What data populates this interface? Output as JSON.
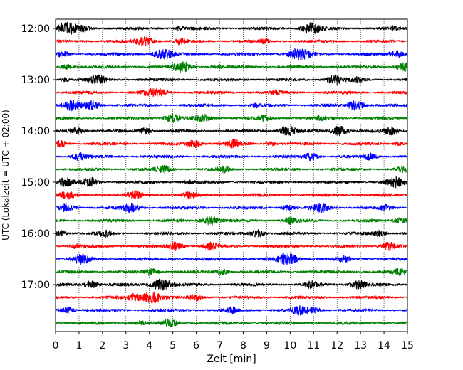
{
  "chart_data": {
    "type": "line",
    "title": "",
    "xlabel": "Zeit  [min]",
    "ylabel": "UTC (Lokalzeit = UTC + 02:00)",
    "xlim": [
      0,
      15
    ],
    "x_ticks": [
      0,
      1,
      2,
      3,
      4,
      5,
      6,
      7,
      8,
      9,
      10,
      11,
      12,
      13,
      14,
      15
    ],
    "grid": "vertical-dotted",
    "legend": "none",
    "y_tick_labels": [
      "12:00",
      "13:00",
      "14:00",
      "15:00",
      "16:00",
      "17:00"
    ],
    "trace_start_times": [
      "12:00",
      "12:15",
      "12:30",
      "12:45",
      "13:00",
      "13:15",
      "13:30",
      "13:45",
      "14:00",
      "14:15",
      "14:30",
      "14:45",
      "15:00",
      "15:15",
      "15:30",
      "15:45",
      "16:00",
      "16:15",
      "16:30",
      "16:45",
      "17:00",
      "17:15",
      "17:30",
      "17:45"
    ],
    "color_cycle": [
      "#000000",
      "#ff0000",
      "#0000ff",
      "#008000"
    ],
    "series": [
      {
        "start": "12:00",
        "color": "#000000",
        "events": [
          [
            0.5,
            1.0
          ],
          [
            10.9,
            0.9
          ],
          [
            1.2,
            0.4
          ],
          [
            5.3,
            0.3
          ],
          [
            14.4,
            0.3
          ]
        ]
      },
      {
        "start": "12:15",
        "color": "#ff0000",
        "events": [
          [
            3.8,
            0.8
          ],
          [
            5.3,
            0.4
          ],
          [
            8.9,
            0.3
          ]
        ]
      },
      {
        "start": "12:30",
        "color": "#0000ff",
        "events": [
          [
            4.6,
            0.9
          ],
          [
            10.4,
            1.0
          ],
          [
            14.5,
            0.6
          ],
          [
            0.3,
            0.4
          ]
        ]
      },
      {
        "start": "12:45",
        "color": "#008000",
        "events": [
          [
            5.4,
            0.8
          ],
          [
            14.9,
            0.8
          ],
          [
            0.5,
            0.4
          ],
          [
            6.9,
            0.3
          ]
        ]
      },
      {
        "start": "13:00",
        "color": "#000000",
        "events": [
          [
            1.8,
            0.7
          ],
          [
            11.9,
            0.8
          ],
          [
            0.4,
            0.3
          ],
          [
            12.9,
            0.4
          ]
        ]
      },
      {
        "start": "13:15",
        "color": "#ff0000",
        "events": [
          [
            4.4,
            0.7
          ],
          [
            3.9,
            0.5
          ],
          [
            9.5,
            0.3
          ]
        ]
      },
      {
        "start": "13:30",
        "color": "#0000ff",
        "events": [
          [
            0.7,
            0.8
          ],
          [
            1.6,
            0.7
          ],
          [
            12.8,
            0.8
          ],
          [
            8.5,
            0.3
          ]
        ]
      },
      {
        "start": "13:45",
        "color": "#008000",
        "events": [
          [
            5.0,
            0.7
          ],
          [
            6.3,
            0.6
          ],
          [
            8.9,
            0.4
          ],
          [
            11.3,
            0.3
          ]
        ]
      },
      {
        "start": "14:00",
        "color": "#000000",
        "events": [
          [
            0.9,
            0.6
          ],
          [
            3.8,
            0.5
          ],
          [
            9.9,
            0.8
          ],
          [
            12.1,
            0.8
          ],
          [
            14.3,
            0.6
          ]
        ]
      },
      {
        "start": "14:15",
        "color": "#ff0000",
        "events": [
          [
            0.2,
            0.5
          ],
          [
            5.9,
            0.6
          ],
          [
            7.6,
            0.6
          ],
          [
            9.2,
            0.3
          ],
          [
            14.6,
            0.3
          ]
        ]
      },
      {
        "start": "14:30",
        "color": "#0000ff",
        "events": [
          [
            1.0,
            0.6
          ],
          [
            10.9,
            0.6
          ],
          [
            13.4,
            0.5
          ]
        ]
      },
      {
        "start": "14:45",
        "color": "#008000",
        "events": [
          [
            4.6,
            0.6
          ],
          [
            7.2,
            0.5
          ],
          [
            14.8,
            0.4
          ]
        ]
      },
      {
        "start": "15:00",
        "color": "#000000",
        "events": [
          [
            0.4,
            0.7
          ],
          [
            1.5,
            0.7
          ],
          [
            14.5,
            0.8
          ],
          [
            5.7,
            0.3
          ]
        ]
      },
      {
        "start": "15:15",
        "color": "#ff0000",
        "events": [
          [
            0.5,
            0.6
          ],
          [
            3.4,
            0.6
          ],
          [
            5.7,
            0.5
          ]
        ]
      },
      {
        "start": "15:30",
        "color": "#0000ff",
        "events": [
          [
            0.5,
            0.6
          ],
          [
            3.2,
            0.7
          ],
          [
            11.3,
            0.7
          ],
          [
            9.9,
            0.4
          ],
          [
            14.1,
            0.4
          ]
        ]
      },
      {
        "start": "15:45",
        "color": "#008000",
        "events": [
          [
            6.6,
            0.8
          ],
          [
            10.0,
            0.5
          ],
          [
            14.7,
            0.5
          ]
        ]
      },
      {
        "start": "16:00",
        "color": "#000000",
        "events": [
          [
            0.1,
            0.6
          ],
          [
            2.1,
            0.5
          ],
          [
            8.6,
            0.6
          ],
          [
            13.8,
            0.5
          ]
        ]
      },
      {
        "start": "16:15",
        "color": "#ff0000",
        "events": [
          [
            5.1,
            0.7
          ],
          [
            6.6,
            0.6
          ],
          [
            14.2,
            0.7
          ],
          [
            0.8,
            0.3
          ]
        ]
      },
      {
        "start": "16:30",
        "color": "#0000ff",
        "events": [
          [
            9.9,
            1.0
          ],
          [
            1.1,
            0.8
          ],
          [
            12.3,
            0.5
          ]
        ]
      },
      {
        "start": "16:45",
        "color": "#008000",
        "events": [
          [
            4.1,
            0.6
          ],
          [
            7.1,
            0.5
          ],
          [
            14.7,
            0.5
          ]
        ]
      },
      {
        "start": "17:00",
        "color": "#000000",
        "events": [
          [
            4.5,
            1.0
          ],
          [
            1.5,
            0.6
          ],
          [
            12.9,
            0.7
          ],
          [
            10.9,
            0.5
          ]
        ]
      },
      {
        "start": "17:15",
        "color": "#ff0000",
        "events": [
          [
            4.1,
            1.0
          ],
          [
            3.3,
            0.6
          ],
          [
            6.0,
            0.5
          ]
        ]
      },
      {
        "start": "17:30",
        "color": "#0000ff",
        "events": [
          [
            10.4,
            0.7
          ],
          [
            0.5,
            0.5
          ],
          [
            7.5,
            0.4
          ],
          [
            11.0,
            0.5
          ]
        ]
      },
      {
        "start": "17:45",
        "color": "#008000",
        "events": [
          [
            4.9,
            0.6
          ],
          [
            3.6,
            0.3
          ]
        ]
      }
    ]
  }
}
